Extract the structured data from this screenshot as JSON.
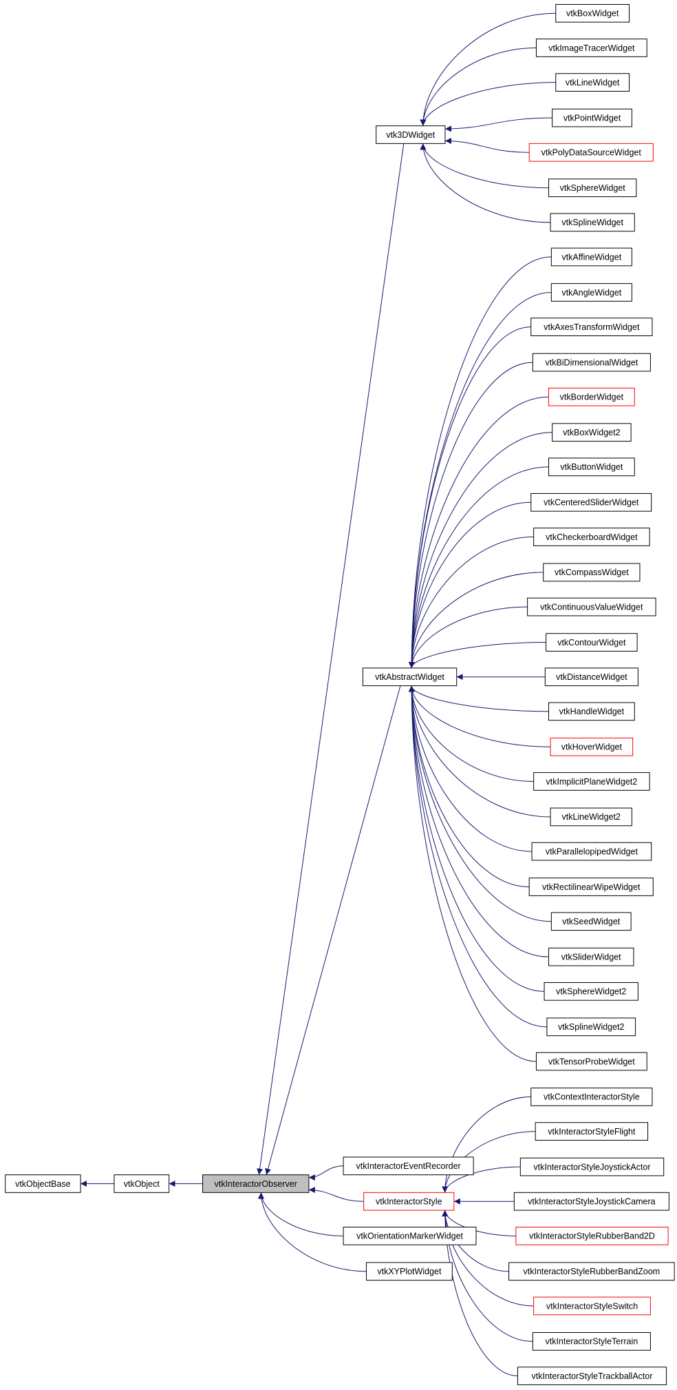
{
  "nodes": [
    {
      "label": "vtkObjectBase"
    },
    {
      "label": "vtkObject"
    },
    {
      "label": "vtkInteractorObserver"
    },
    {
      "label": "vtk3DWidget"
    },
    {
      "label": "vtkAbstractWidget"
    },
    {
      "label": "vtkInteractorEventRecorder"
    },
    {
      "label": "vtkInteractorStyle"
    },
    {
      "label": "vtkOrientationMarkerWidget"
    },
    {
      "label": "vtkXYPlotWidget"
    },
    {
      "label": "vtkBoxWidget"
    },
    {
      "label": "vtkImageTracerWidget"
    },
    {
      "label": "vtkLineWidget"
    },
    {
      "label": "vtkPointWidget"
    },
    {
      "label": "vtkPolyDataSourceWidget"
    },
    {
      "label": "vtkSphereWidget"
    },
    {
      "label": "vtkSplineWidget"
    },
    {
      "label": "vtkAffineWidget"
    },
    {
      "label": "vtkAngleWidget"
    },
    {
      "label": "vtkAxesTransformWidget"
    },
    {
      "label": "vtkBiDimensionalWidget"
    },
    {
      "label": "vtkBorderWidget"
    },
    {
      "label": "vtkBoxWidget2"
    },
    {
      "label": "vtkButtonWidget"
    },
    {
      "label": "vtkCenteredSliderWidget"
    },
    {
      "label": "vtkCheckerboardWidget"
    },
    {
      "label": "vtkCompassWidget"
    },
    {
      "label": "vtkContinuousValueWidget"
    },
    {
      "label": "vtkContourWidget"
    },
    {
      "label": "vtkDistanceWidget"
    },
    {
      "label": "vtkHandleWidget"
    },
    {
      "label": "vtkHoverWidget"
    },
    {
      "label": "vtkImplicitPlaneWidget2"
    },
    {
      "label": "vtkLineWidget2"
    },
    {
      "label": "vtkParallelopipedWidget"
    },
    {
      "label": "vtkRectilinearWipeWidget"
    },
    {
      "label": "vtkSeedWidget"
    },
    {
      "label": "vtkSliderWidget"
    },
    {
      "label": "vtkSphereWidget2"
    },
    {
      "label": "vtkSplineWidget2"
    },
    {
      "label": "vtkTensorProbeWidget"
    },
    {
      "label": "vtkContextInteractorStyle"
    },
    {
      "label": "vtkInteractorStyleFlight"
    },
    {
      "label": "vtkInteractorStyleJoystickActor"
    },
    {
      "label": "vtkInteractorStyleJoystickCamera"
    },
    {
      "label": "vtkInteractorStyleRubberBand2D"
    },
    {
      "label": "vtkInteractorStyleRubberBandZoom"
    },
    {
      "label": "vtkInteractorStyleSwitch"
    },
    {
      "label": "vtkInteractorStyleTerrain"
    },
    {
      "label": "vtkInteractorStyleTrackballActor"
    }
  ]
}
